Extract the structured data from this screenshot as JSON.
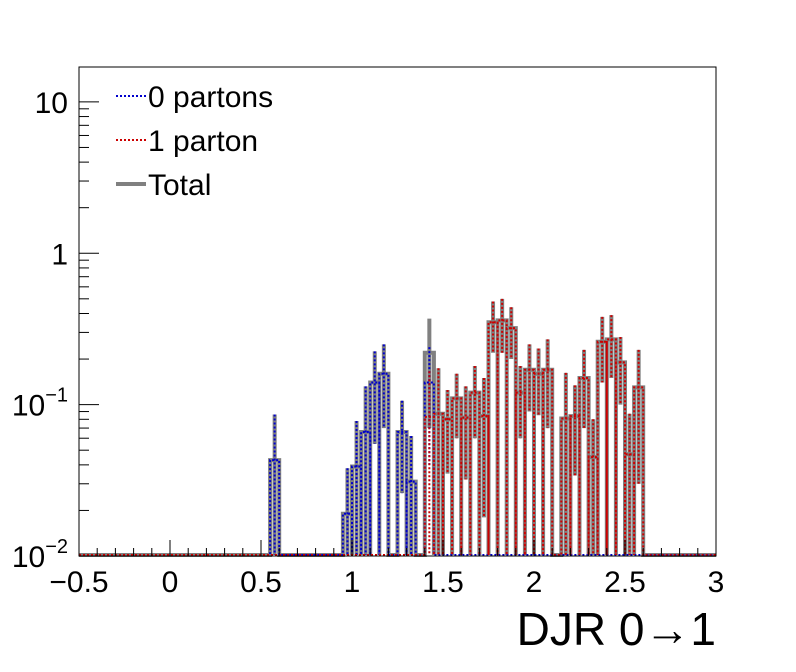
{
  "chart_data": {
    "type": "histogram",
    "xlabel": "DJR 0→1",
    "ylabel": "",
    "xlim": [
      -0.5,
      3
    ],
    "ylim": [
      0.01,
      17
    ],
    "y_scale": "log",
    "grid": false,
    "legend_placement": "top-left",
    "x_ticks": [
      "−0.5",
      "0",
      "0.5",
      "1",
      "1.5",
      "2",
      "2.5",
      "3"
    ],
    "x_tick_values": [
      -0.5,
      0,
      0.5,
      1,
      1.5,
      2,
      2.5,
      3
    ],
    "y_ticks": [
      {
        "value": 10,
        "label": "10",
        "sup": ""
      },
      {
        "value": 1,
        "label": "1",
        "sup": ""
      },
      {
        "value": 0.1,
        "label": "10",
        "sup": "−1"
      },
      {
        "value": 0.01,
        "label": "10",
        "sup": "−2"
      }
    ],
    "bin_width": 0.05,
    "series": [
      {
        "name": "0 partons",
        "color": "#0000cc",
        "style": "dotted",
        "points": [
          {
            "x": 0.55,
            "y": 0.043,
            "err": 0.043
          },
          {
            "x": 0.95,
            "y": 0.019,
            "err": 0.019
          },
          {
            "x": 1.0,
            "y": 0.039,
            "err": 0.039
          },
          {
            "x": 1.05,
            "y": 0.066,
            "err": 0.066
          },
          {
            "x": 1.1,
            "y": 0.14,
            "err": 0.085
          },
          {
            "x": 1.15,
            "y": 0.16,
            "err": 0.09
          },
          {
            "x": 1.25,
            "y": 0.066,
            "err": 0.04
          },
          {
            "x": 1.3,
            "y": 0.031,
            "err": 0.031
          },
          {
            "x": 1.4,
            "y": 0.14,
            "err": 0.1
          }
        ]
      },
      {
        "name": "1 parton",
        "color": "#cc0000",
        "style": "dotted",
        "points": [
          {
            "x": 1.4,
            "y": 0.083,
            "err": 0.083
          },
          {
            "x": 1.45,
            "y": 0.087,
            "err": 0.087
          },
          {
            "x": 1.5,
            "y": 0.08,
            "err": 0.045
          },
          {
            "x": 1.55,
            "y": 0.11,
            "err": 0.05
          },
          {
            "x": 1.6,
            "y": 0.082,
            "err": 0.05
          },
          {
            "x": 1.65,
            "y": 0.12,
            "err": 0.06
          },
          {
            "x": 1.7,
            "y": 0.084,
            "err": 0.066
          },
          {
            "x": 1.75,
            "y": 0.35,
            "err": 0.13
          },
          {
            "x": 1.8,
            "y": 0.36,
            "err": 0.14
          },
          {
            "x": 1.85,
            "y": 0.32,
            "err": 0.12
          },
          {
            "x": 1.9,
            "y": 0.12,
            "err": 0.06
          },
          {
            "x": 1.95,
            "y": 0.17,
            "err": 0.08
          },
          {
            "x": 2.0,
            "y": 0.16,
            "err": 0.075
          },
          {
            "x": 2.05,
            "y": 0.17,
            "err": 0.1
          },
          {
            "x": 2.15,
            "y": 0.081,
            "err": 0.081
          },
          {
            "x": 2.2,
            "y": 0.084,
            "err": 0.05
          },
          {
            "x": 2.25,
            "y": 0.15,
            "err": 0.08
          },
          {
            "x": 2.3,
            "y": 0.045,
            "err": 0.035
          },
          {
            "x": 2.35,
            "y": 0.26,
            "err": 0.12
          },
          {
            "x": 2.4,
            "y": 0.27,
            "err": 0.12
          },
          {
            "x": 2.45,
            "y": 0.19,
            "err": 0.09
          },
          {
            "x": 2.5,
            "y": 0.047,
            "err": 0.04
          },
          {
            "x": 2.55,
            "y": 0.13,
            "err": 0.1
          }
        ]
      },
      {
        "name": "Total",
        "color": "#808080",
        "style": "solid",
        "points": [
          {
            "x": 0.55,
            "y": 0.043,
            "err": 0.043
          },
          {
            "x": 0.95,
            "y": 0.019,
            "err": 0.019
          },
          {
            "x": 1.0,
            "y": 0.039,
            "err": 0.039
          },
          {
            "x": 1.05,
            "y": 0.066,
            "err": 0.066
          },
          {
            "x": 1.1,
            "y": 0.14,
            "err": 0.085
          },
          {
            "x": 1.15,
            "y": 0.16,
            "err": 0.09
          },
          {
            "x": 1.25,
            "y": 0.066,
            "err": 0.04
          },
          {
            "x": 1.3,
            "y": 0.031,
            "err": 0.031
          },
          {
            "x": 1.4,
            "y": 0.22,
            "err": 0.15
          },
          {
            "x": 1.45,
            "y": 0.087,
            "err": 0.087
          },
          {
            "x": 1.5,
            "y": 0.08,
            "err": 0.045
          },
          {
            "x": 1.55,
            "y": 0.11,
            "err": 0.05
          },
          {
            "x": 1.6,
            "y": 0.082,
            "err": 0.05
          },
          {
            "x": 1.65,
            "y": 0.12,
            "err": 0.06
          },
          {
            "x": 1.7,
            "y": 0.084,
            "err": 0.066
          },
          {
            "x": 1.75,
            "y": 0.35,
            "err": 0.13
          },
          {
            "x": 1.8,
            "y": 0.36,
            "err": 0.14
          },
          {
            "x": 1.85,
            "y": 0.32,
            "err": 0.12
          },
          {
            "x": 1.9,
            "y": 0.12,
            "err": 0.06
          },
          {
            "x": 1.95,
            "y": 0.17,
            "err": 0.08
          },
          {
            "x": 2.0,
            "y": 0.16,
            "err": 0.075
          },
          {
            "x": 2.05,
            "y": 0.17,
            "err": 0.1
          },
          {
            "x": 2.15,
            "y": 0.081,
            "err": 0.081
          },
          {
            "x": 2.2,
            "y": 0.084,
            "err": 0.05
          },
          {
            "x": 2.25,
            "y": 0.15,
            "err": 0.08
          },
          {
            "x": 2.3,
            "y": 0.045,
            "err": 0.035
          },
          {
            "x": 2.35,
            "y": 0.26,
            "err": 0.12
          },
          {
            "x": 2.4,
            "y": 0.27,
            "err": 0.12
          },
          {
            "x": 2.45,
            "y": 0.19,
            "err": 0.09
          },
          {
            "x": 2.5,
            "y": 0.047,
            "err": 0.04
          },
          {
            "x": 2.55,
            "y": 0.13,
            "err": 0.1
          }
        ]
      }
    ]
  }
}
